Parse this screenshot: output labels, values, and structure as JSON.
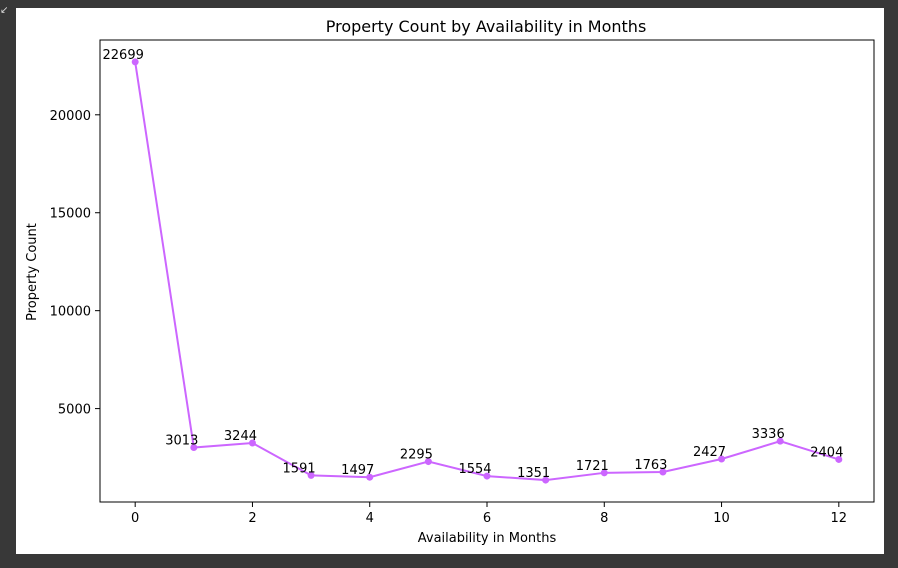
{
  "chart_data": {
    "type": "line",
    "title": "Property Count by Availability in Months",
    "xlabel": "Availability in Months",
    "ylabel": "Property Count",
    "x": [
      0,
      1,
      2,
      3,
      4,
      5,
      6,
      7,
      8,
      9,
      10,
      11,
      12
    ],
    "series": [
      {
        "name": "Property Count",
        "values": [
          22699,
          3013,
          3244,
          1591,
          1497,
          2295,
          1554,
          1351,
          1721,
          1763,
          2427,
          3336,
          2404
        ],
        "color": "#cc66ff"
      }
    ],
    "data_labels": [
      "22699",
      "3013",
      "3244",
      "1591",
      "1497",
      "2295",
      "1554",
      "1351",
      "1721",
      "1763",
      "2427",
      "3336",
      "2404"
    ],
    "xlim": [
      -0.6,
      12.6
    ],
    "ylim": [
      231,
      23819
    ],
    "xticks": [
      0,
      2,
      4,
      6,
      8,
      10,
      12
    ],
    "xtick_labels": [
      "0",
      "2",
      "4",
      "6",
      "8",
      "10",
      "12"
    ],
    "yticks": [
      5000,
      10000,
      15000,
      20000
    ],
    "ytick_labels": [
      "5000",
      "10000",
      "15000",
      "20000"
    ],
    "grid": false,
    "legend": "none"
  }
}
